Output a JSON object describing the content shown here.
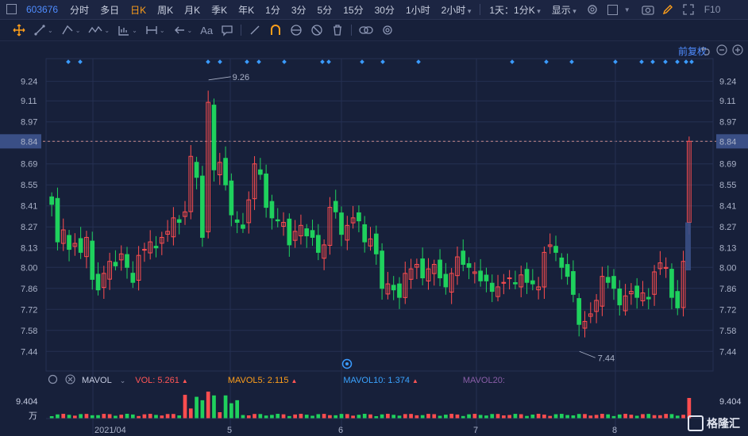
{
  "header": {
    "stock_code": "603676",
    "timeframes": [
      {
        "label": "分时",
        "active": false,
        "dropdown": false
      },
      {
        "label": "多日",
        "active": false,
        "dropdown": false
      },
      {
        "label": "日K",
        "active": true,
        "dropdown": false
      },
      {
        "label": "周K",
        "active": false,
        "dropdown": false
      },
      {
        "label": "月K",
        "active": false,
        "dropdown": false
      },
      {
        "label": "季K",
        "active": false,
        "dropdown": false
      },
      {
        "label": "年K",
        "active": false,
        "dropdown": false
      },
      {
        "label": "1分",
        "active": false,
        "dropdown": false
      },
      {
        "label": "3分",
        "active": false,
        "dropdown": false
      },
      {
        "label": "5分",
        "active": false,
        "dropdown": false
      },
      {
        "label": "15分",
        "active": false,
        "dropdown": false
      },
      {
        "label": "30分",
        "active": false,
        "dropdown": false
      },
      {
        "label": "1小时",
        "active": false,
        "dropdown": false
      },
      {
        "label": "2小时",
        "active": false,
        "dropdown": true
      }
    ],
    "interval_select": "1天：1分K",
    "display_select": "显示",
    "f10_label": "F10"
  },
  "chart": {
    "adjust_label": "前复权",
    "volume_legend": {
      "name": "MAVOL",
      "vol": "VOL: 5.261",
      "mavol5": "MAVOL5: 2.115",
      "mavol10": "MAVOL10: 1.374",
      "mavol20": "MAVOL20:",
      "colors": {
        "vol": "#ff5555",
        "mavol5": "#ff9f1a",
        "mavol10": "#3aa3ff",
        "mavol20": "#b37bd6"
      }
    },
    "volume_axis": {
      "max_label": "9.404",
      "unit": "万"
    },
    "current_price_label": "8.84",
    "high_annotation": "9.26",
    "low_annotation": "7.44"
  },
  "chart_data": {
    "type": "candlestick",
    "y_ticks": [
      "9.24",
      "9.11",
      "8.97",
      "8.84",
      "8.69",
      "8.55",
      "8.41",
      "8.27",
      "8.13",
      "8.00",
      "7.86",
      "7.72",
      "7.58",
      "7.44"
    ],
    "x_ticks": [
      "2021/04",
      "5",
      "6",
      "7",
      "8"
    ],
    "ylim": [
      7.32,
      9.37
    ],
    "current_price": 8.84,
    "high": 9.26,
    "low": 7.44,
    "colors": {
      "up": "#ff4d4f",
      "down": "#1fd15d",
      "grid": "#253052",
      "bg": "#17203a"
    }
  },
  "watermark": {
    "text": "格隆汇"
  }
}
